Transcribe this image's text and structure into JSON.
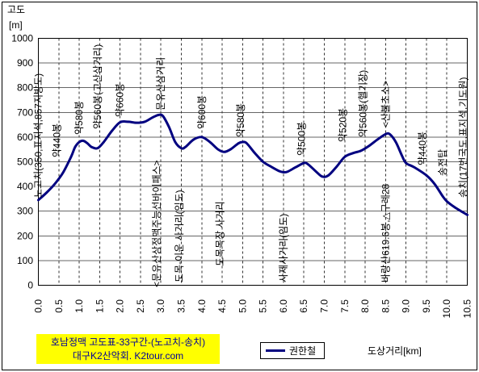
{
  "chart_data": {
    "type": "line",
    "title": "호남정맥 고도표-33구간-(노고치-송치)",
    "subtitle": "대구K2산악회. K2tour.com",
    "xlabel": "도상거리[km]",
    "ylabel": "고도",
    "ylabel_unit": "[m]",
    "xlim": [
      0,
      10.5
    ],
    "ylim": [
      0,
      1000
    ],
    "x_ticks": [
      "0.0",
      "0.5",
      "1.0",
      "1.5",
      "2.0",
      "2.5",
      "3.0",
      "3.5",
      "4.0",
      "4.5",
      "5.0",
      "5.5",
      "6.0",
      "6.5",
      "7.0",
      "7.5",
      "8.0",
      "8.5",
      "9.0",
      "9.5",
      "10.0",
      "10.5"
    ],
    "y_ticks": [
      "0",
      "100",
      "200",
      "300",
      "400",
      "500",
      "600",
      "700",
      "800",
      "900",
      "1000"
    ],
    "grid": true,
    "legend_position": "bottom",
    "series": [
      {
        "name": "권한철",
        "color": "#000080",
        "x": [
          0,
          0.2,
          0.4,
          0.6,
          0.8,
          0.9,
          1.0,
          1.1,
          1.2,
          1.3,
          1.45,
          1.6,
          1.8,
          2.0,
          2.2,
          2.4,
          2.6,
          2.8,
          2.95,
          3.05,
          3.2,
          3.35,
          3.5,
          3.6,
          3.8,
          4.0,
          4.2,
          4.4,
          4.55,
          4.7,
          4.9,
          5.0,
          5.1,
          5.3,
          5.5,
          5.7,
          5.9,
          6.0,
          6.1,
          6.3,
          6.5,
          6.6,
          6.8,
          6.95,
          7.1,
          7.3,
          7.5,
          7.7,
          7.9,
          8.1,
          8.3,
          8.5,
          8.6,
          8.75,
          8.9,
          9.0,
          9.2,
          9.5,
          9.7,
          9.9,
          10.0,
          10.2,
          10.5
        ],
        "y": [
          345,
          375,
          410,
          455,
          520,
          560,
          580,
          585,
          575,
          560,
          555,
          580,
          625,
          660,
          662,
          658,
          662,
          680,
          690,
          685,
          640,
          580,
          555,
          560,
          590,
          600,
          580,
          550,
          540,
          550,
          575,
          580,
          575,
          535,
          500,
          480,
          462,
          458,
          460,
          478,
          495,
          490,
          460,
          440,
          445,
          480,
          520,
          535,
          545,
          565,
          590,
          612,
          612,
          580,
          525,
          495,
          478,
          445,
          410,
          360,
          340,
          315,
          285
        ]
      }
    ],
    "annotations": [
      {
        "text": "노고치(350,표지석,857지방도)",
        "x": 0
      },
      {
        "text": "약440봉",
        "x": 0.45
      },
      {
        "text": "약580봉",
        "x": 1.0
      },
      {
        "text": "약560봉(고산삼거리)",
        "x": 1.45
      },
      {
        "text": "약660봉",
        "x": 2.0
      },
      {
        "text": "<문유산상정맥주능선바이패스>",
        "x": 2.9
      },
      {
        "text": "문유산삼거리",
        "x": 3.0
      },
      {
        "text": "도목-이운 사거리(임도)",
        "x": 3.45
      },
      {
        "text": "약600봉",
        "x": 4.0
      },
      {
        "text": "도목목장 사거리",
        "x": 4.45
      },
      {
        "text": "약580봉",
        "x": 4.95
      },
      {
        "text": "사제사거리(임도)",
        "x": 6.0
      },
      {
        "text": "약500봉",
        "x": 6.45
      },
      {
        "text": "약520봉",
        "x": 7.45
      },
      {
        "text": "약560봉(헬기장)",
        "x": 7.95
      },
      {
        "text": "<산불초소>",
        "x": 8.5
      },
      {
        "text": "바랑산619.6봉,△구례28",
        "x": 8.5
      },
      {
        "text": "약440봉",
        "x": 9.4
      },
      {
        "text": "송전탑",
        "x": 9.9
      },
      {
        "text": "송치(17번국도,표지석,기도원)",
        "x": 10.4
      }
    ]
  },
  "style": {
    "title_box_bg": "#FFFF00",
    "title_text_color": "#000099"
  }
}
